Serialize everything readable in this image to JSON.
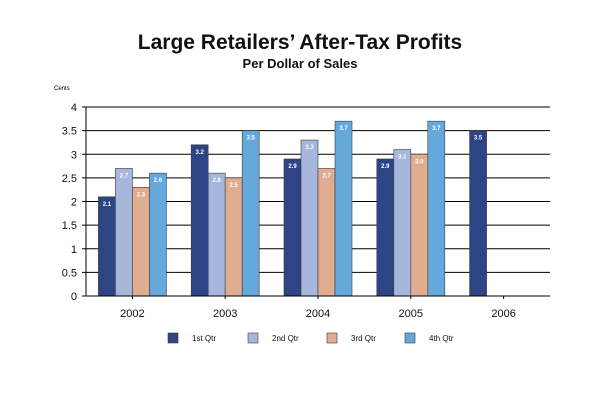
{
  "chart_data": {
    "type": "bar",
    "title": "Large Retailers’ After-Tax Profits",
    "subtitle": "Per Dollar of Sales",
    "ylabel": "Cents",
    "xlabel": "",
    "categories": [
      "2002",
      "2003",
      "2004",
      "2005",
      "2006"
    ],
    "ylim": [
      0,
      4
    ],
    "yticks": [
      "0",
      "0.5",
      "1",
      "1.5",
      "2",
      "2.5",
      "3",
      "3.5",
      "4"
    ],
    "grid": true,
    "legend_position": "bottom",
    "series": [
      {
        "name": "1st Qtr",
        "color": "#2e4585",
        "values": [
          2.1,
          3.2,
          2.9,
          2.9,
          3.5
        ],
        "labels": [
          "2.1",
          "3.2",
          "2.9",
          "2.9",
          "3.5"
        ]
      },
      {
        "name": "2nd Qtr",
        "color": "#a7b7dc",
        "values": [
          2.7,
          2.6,
          3.3,
          3.1,
          null
        ],
        "labels": [
          "2.7",
          "2.6",
          "3.3",
          "3.1",
          ""
        ]
      },
      {
        "name": "3rd Qtr",
        "color": "#e1ad91",
        "values": [
          2.3,
          2.5,
          2.7,
          3.0,
          null
        ],
        "labels": [
          "2.3",
          "2.5",
          "2.7",
          "3.0",
          ""
        ]
      },
      {
        "name": "4th Qtr",
        "color": "#65a9dc",
        "values": [
          2.6,
          3.5,
          3.7,
          3.7,
          null
        ],
        "labels": [
          "2.6",
          "3.5",
          "3.7",
          "3.7",
          ""
        ]
      }
    ]
  }
}
